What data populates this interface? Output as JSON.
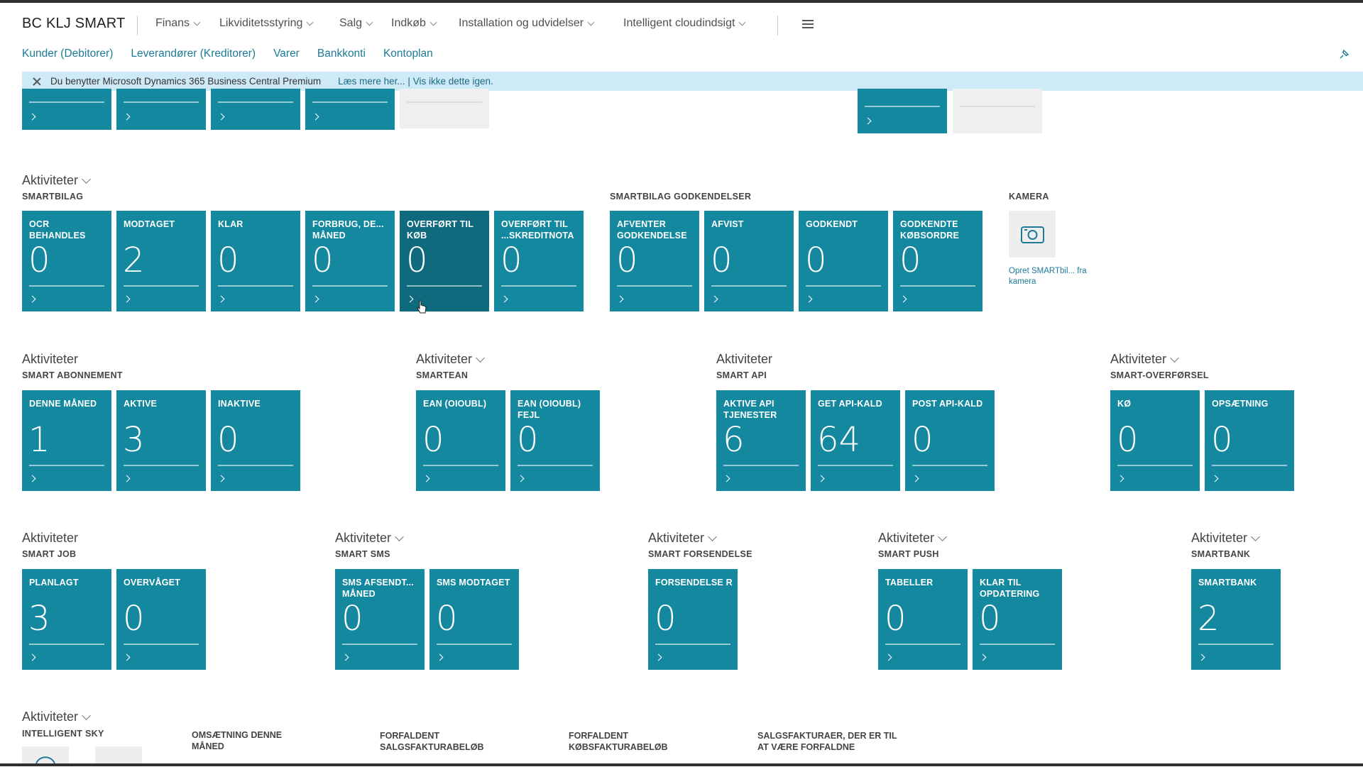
{
  "app": {
    "company": "BC KLJ SMART",
    "menus": [
      "Finans",
      "Likviditetsstyring",
      "Salg",
      "Indkøb",
      "Installation og udvidelser",
      "Intelligent cloudindsigt"
    ]
  },
  "nav_links": [
    "Kunder (Debitorer)",
    "Leverandører (Kreditorer)",
    "Varer",
    "Bankkonti",
    "Kontoplan"
  ],
  "notification": {
    "message": "Du benytter Microsoft Dynamics 365 Business Central Premium",
    "link": "Læs mere her... | Vis ikke dette igen."
  },
  "sections": {
    "smartbilag": {
      "title": "Aktiviteter",
      "subtitle": "SMARTBILAG",
      "tiles": [
        {
          "label": "OCR BEHANDLES",
          "value": "0"
        },
        {
          "label": "MODTAGET",
          "value": "2"
        },
        {
          "label": "KLAR",
          "value": "0"
        },
        {
          "label": "FORBRUG, DE... MÅNED",
          "value": "0"
        },
        {
          "label": "OVERFØRT TIL KØB",
          "value": "0"
        },
        {
          "label": "OVERFØRT TIL ...SKREDITNOTA",
          "value": "0"
        }
      ]
    },
    "godkendelser": {
      "subtitle": "SMARTBILAG GODKENDELSER",
      "tiles": [
        {
          "label": "AFVENTER GODKENDELSE",
          "value": "0"
        },
        {
          "label": "AFVIST",
          "value": "0"
        },
        {
          "label": "GODKENDT",
          "value": "0"
        },
        {
          "label": "GODKENDTE KØBSORDRE",
          "value": "0"
        }
      ]
    },
    "kamera": {
      "subtitle": "KAMERA",
      "link": "Opret SMARTbil... fra kamera"
    },
    "abonnement": {
      "title": "Aktiviteter",
      "subtitle": "SMART ABONNEMENT",
      "tiles": [
        {
          "label": "DENNE MÅNED",
          "value": "1"
        },
        {
          "label": "AKTIVE",
          "value": "3"
        },
        {
          "label": "INAKTIVE",
          "value": "0"
        }
      ]
    },
    "smartean": {
      "title": "Aktiviteter",
      "subtitle": "SMARTEAN",
      "tiles": [
        {
          "label": "EAN (OIOUBL)",
          "value": "0"
        },
        {
          "label": "EAN (OIOUBL) FEJL",
          "value": "0"
        }
      ]
    },
    "smartapi": {
      "title": "Aktiviteter",
      "subtitle": "SMART API",
      "tiles": [
        {
          "label": "AKTIVE API TJENESTER",
          "value": "6"
        },
        {
          "label": "GET API-KALD",
          "value": "64"
        },
        {
          "label": "POST API-KALD",
          "value": "0"
        }
      ]
    },
    "overforsel": {
      "title": "Aktiviteter",
      "subtitle": "SMART-OVERFØRSEL",
      "tiles": [
        {
          "label": "KØ",
          "value": "0"
        },
        {
          "label": "OPSÆTNING",
          "value": "0"
        }
      ]
    },
    "job": {
      "title": "Aktiviteter",
      "subtitle": "SMART JOB",
      "tiles": [
        {
          "label": "PLANLAGT",
          "value": "3"
        },
        {
          "label": "OVERVÅGET",
          "value": "0"
        }
      ]
    },
    "sms": {
      "title": "Aktiviteter",
      "subtitle": "SMART SMS",
      "tiles": [
        {
          "label": "SMS AFSENDT... MÅNED",
          "value": "0"
        },
        {
          "label": "SMS MODTAGET",
          "value": "0"
        }
      ]
    },
    "forsendelse": {
      "title": "Aktiviteter",
      "subtitle": "SMART FORSENDELSE",
      "tiles": [
        {
          "label": "FORSENDELSE R",
          "value": "0"
        }
      ]
    },
    "push": {
      "title": "Aktiviteter",
      "subtitle": "SMART PUSH",
      "tiles": [
        {
          "label": "TABELLER",
          "value": "0"
        },
        {
          "label": "KLAR TIL OPDATERING",
          "value": "0"
        }
      ]
    },
    "smartbank": {
      "title": "Aktiviteter",
      "subtitle": "SMARTBANK",
      "tiles": [
        {
          "label": "SMARTBANK",
          "value": "2"
        }
      ]
    },
    "sky": {
      "title": "Aktiviteter",
      "subtitle": "INTELLIGENT SKY",
      "kpis": [
        {
          "label": "OMSÆTNING DENNE MÅNED"
        },
        {
          "label": "FORFALDENT SALGSFAKTURABELØB"
        },
        {
          "label": "FORFALDENT KØBSFAKTURABELØB"
        },
        {
          "label": "SALGSFAKTURAER, DER ER TIL AT VÆRE FORFALDNE"
        }
      ]
    }
  },
  "colors": {
    "tile": "#14889f",
    "tile_hover": "#0f6a7e",
    "link": "#1c7a97",
    "notification_bg": "#cdeaf6"
  }
}
